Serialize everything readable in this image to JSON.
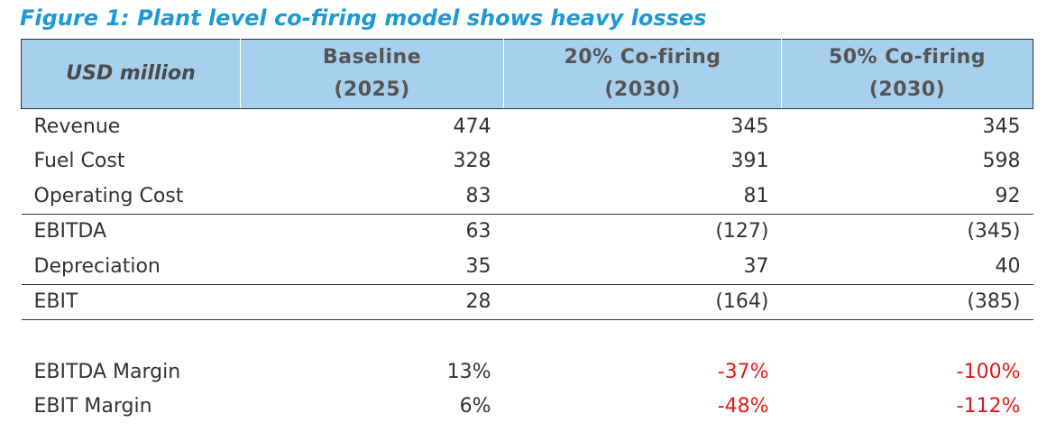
{
  "title": "Figure 1: Plant level co-firing model shows heavy losses",
  "header": {
    "label": "USD million",
    "columns": [
      {
        "line1": "Baseline",
        "line2": "(2025)"
      },
      {
        "line1": "20% Co-firing",
        "line2": "(2030)"
      },
      {
        "line1": "50% Co-firing",
        "line2": "(2030)"
      }
    ]
  },
  "rows": [
    {
      "label": "Revenue",
      "values": [
        "474",
        "345",
        "345"
      ]
    },
    {
      "label": "Fuel Cost",
      "values": [
        "328",
        "391",
        "598"
      ]
    },
    {
      "label": "Operating Cost",
      "values": [
        "83",
        "81",
        "92"
      ]
    },
    {
      "label": "EBITDA",
      "values": [
        "63",
        "(127)",
        "(345)"
      ]
    },
    {
      "label": "Depreciation",
      "values": [
        "35",
        "37",
        "40"
      ]
    },
    {
      "label": "EBIT",
      "values": [
        "28",
        "(164)",
        "(385)"
      ]
    }
  ],
  "margins": [
    {
      "label": "EBITDA Margin",
      "values": [
        "13%",
        "-37%",
        "-100%"
      ]
    },
    {
      "label": "EBIT Margin",
      "values": [
        "6%",
        "-48%",
        "-112%"
      ]
    }
  ],
  "colors": {
    "title": "#1a9ad6",
    "header_bg": "#a7d0ee",
    "negative": "#e31818",
    "text": "#333333"
  }
}
